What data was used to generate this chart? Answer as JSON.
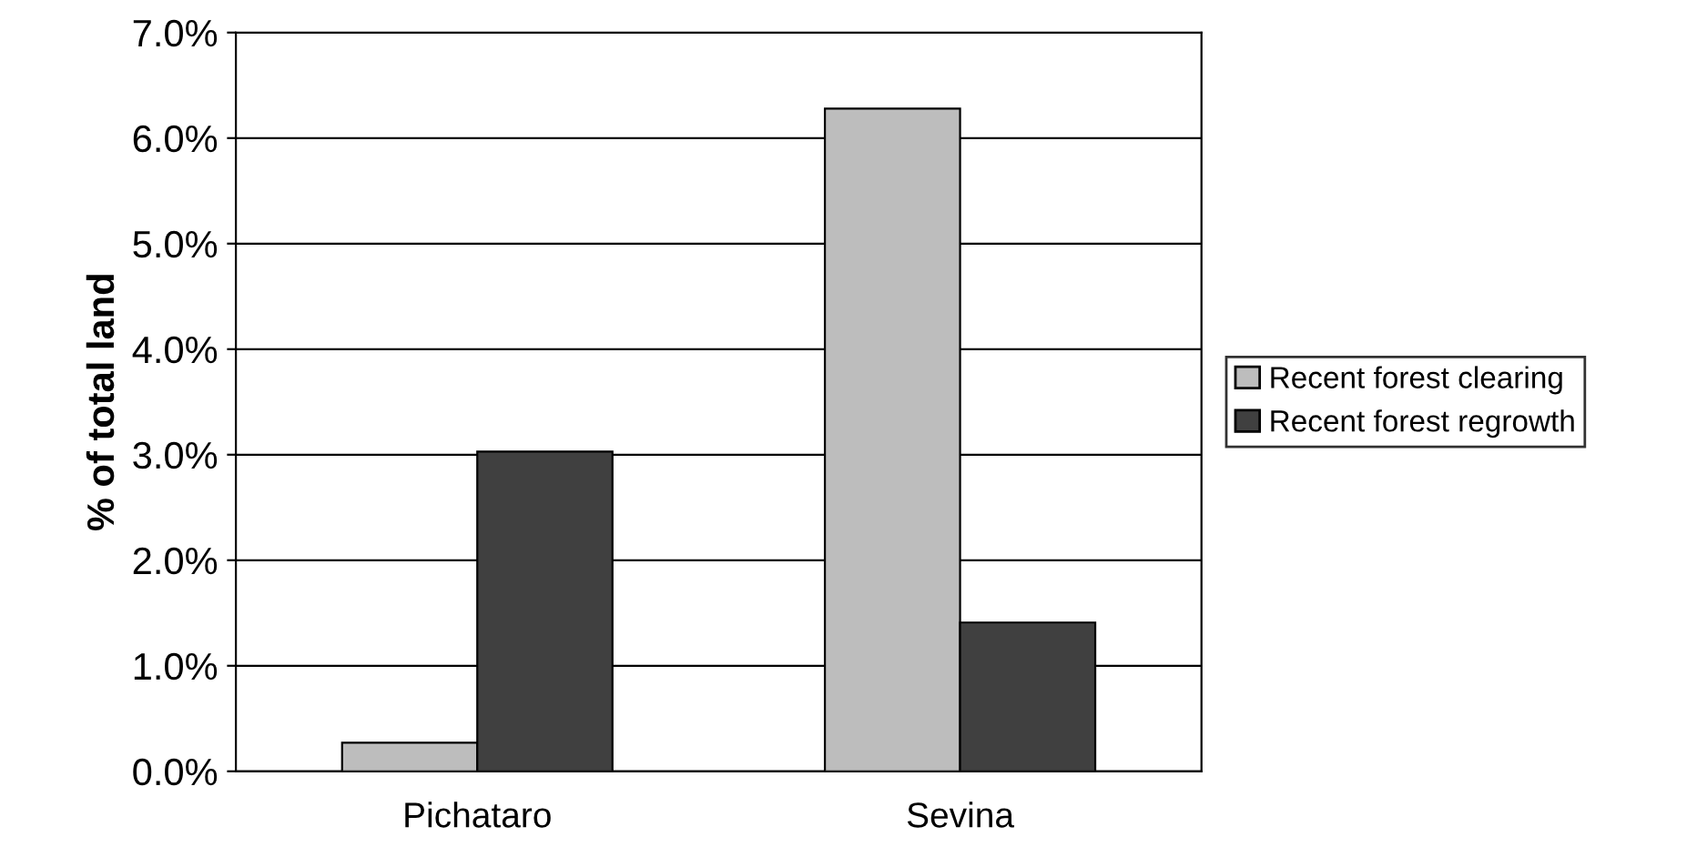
{
  "chart_data": {
    "type": "bar",
    "ylabel": "% of total land",
    "categories": [
      "Pichataro",
      "Sevina"
    ],
    "series": [
      {
        "name": "Recent forest clearing",
        "color": "#bdbdbd",
        "values": [
          0.27,
          6.28
        ]
      },
      {
        "name": "Recent forest regrowth",
        "color": "#404040",
        "values": [
          3.03,
          1.41
        ]
      }
    ],
    "ylim": [
      0,
      7
    ],
    "yticks": [
      {
        "value": 0,
        "label": "0.0%"
      },
      {
        "value": 1,
        "label": "1.0%"
      },
      {
        "value": 2,
        "label": "2.0%"
      },
      {
        "value": 3,
        "label": "3.0%"
      },
      {
        "value": 4,
        "label": "4.0%"
      },
      {
        "value": 5,
        "label": "5.0%"
      },
      {
        "value": 6,
        "label": "6.0%"
      },
      {
        "value": 7,
        "label": "7.0%"
      }
    ],
    "grid": "y",
    "legend": "right"
  }
}
